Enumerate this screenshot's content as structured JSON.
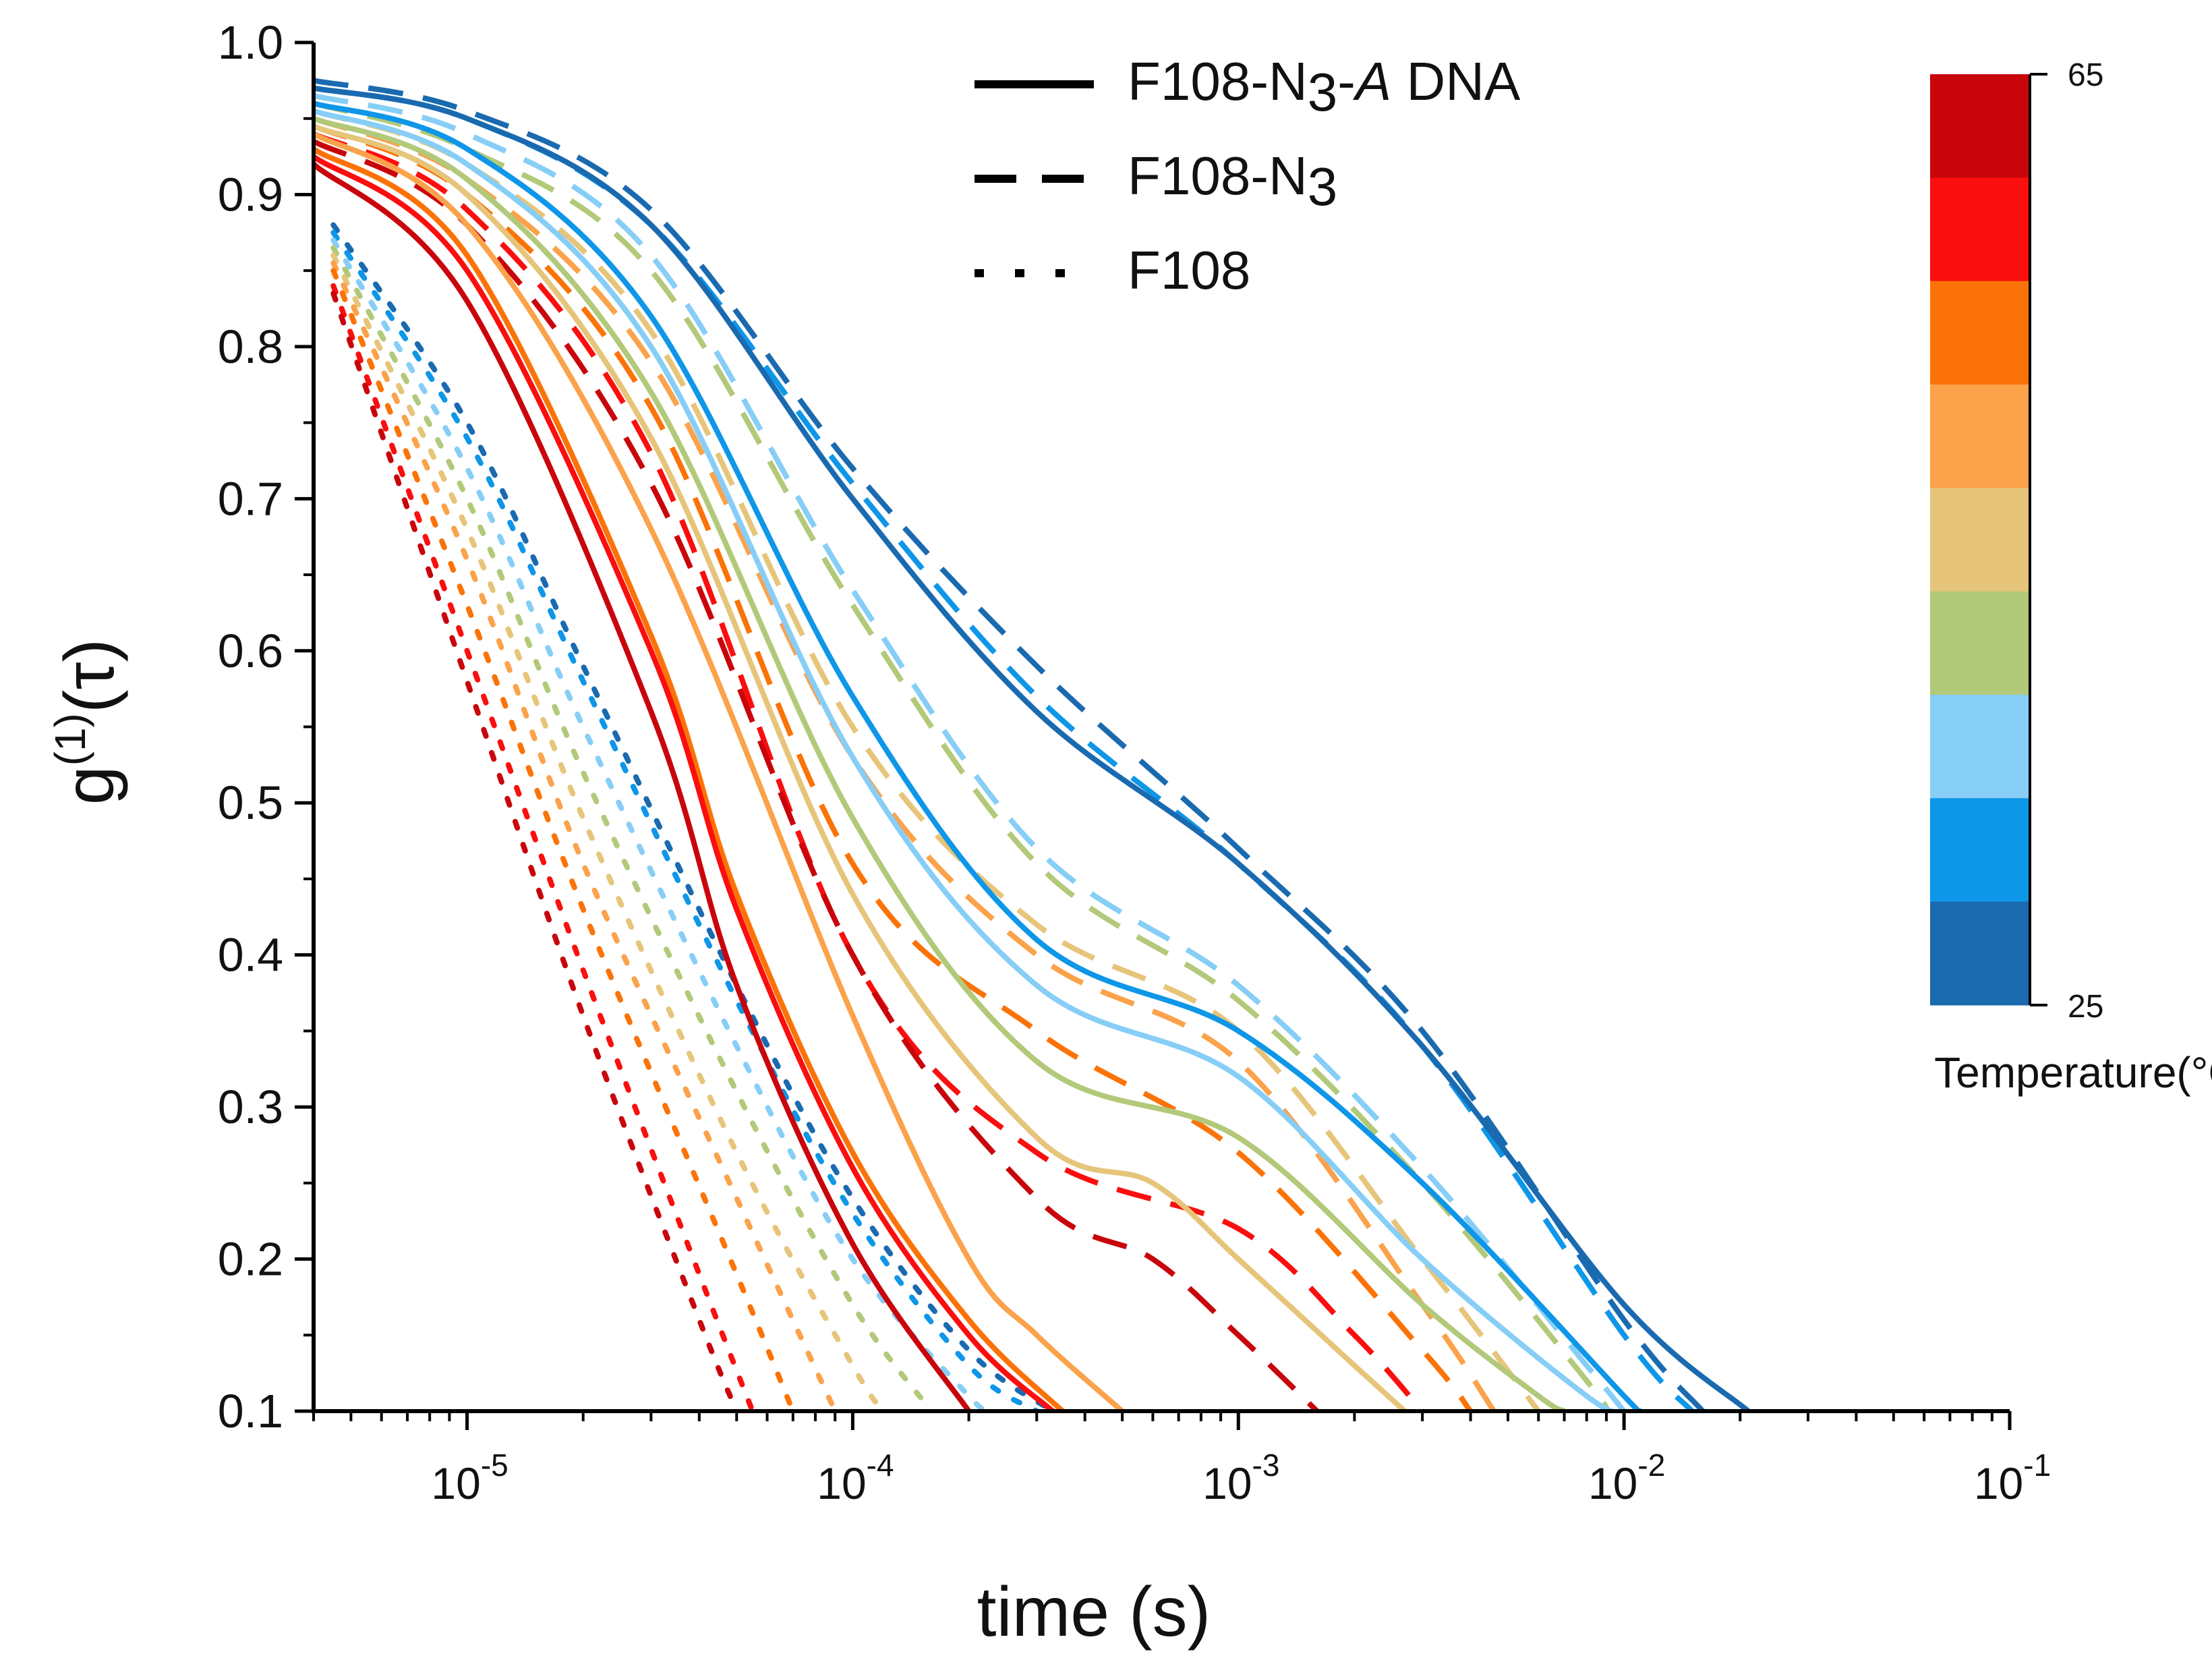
{
  "chart_data": {
    "type": "line",
    "title": "",
    "xlabel": "time (s)",
    "ylabel": {
      "base": "g",
      "superscript": "(1)",
      "suffix": "(τ)"
    },
    "xscale": "log",
    "xlim": [
      4e-06,
      0.1
    ],
    "ylim": [
      0.1,
      1.0
    ],
    "x_tick_labels": [
      {
        "base": "10",
        "exp": "-5"
      },
      {
        "base": "10",
        "exp": "-4"
      },
      {
        "base": "10",
        "exp": "-3"
      },
      {
        "base": "10",
        "exp": "-2"
      },
      {
        "base": "10",
        "exp": "-1"
      }
    ],
    "y_tick_labels": [
      "0.1",
      "0.2",
      "0.3",
      "0.4",
      "0.5",
      "0.6",
      "0.7",
      "0.8",
      "0.9",
      "1.0"
    ],
    "legend": {
      "position": "top-center",
      "entries": [
        {
          "style": "solid",
          "parts": [
            "F108-N",
            "3",
            "-",
            "A",
            " DNA"
          ]
        },
        {
          "style": "dashed",
          "parts": [
            "F108-N",
            "3"
          ]
        },
        {
          "style": "dotted",
          "parts": [
            "F108"
          ]
        }
      ]
    },
    "colorbar": {
      "label": "Temperature(°C)",
      "min_label": "25",
      "max_label": "65",
      "colors_low_to_high": [
        "#1a6ab0",
        "#0e96e8",
        "#87cef7",
        "#b2c97a",
        "#e6c57a",
        "#fba24b",
        "#fb7308",
        "#fb0e0e",
        "#c9050c"
      ]
    },
    "series_styles": [
      "solid",
      "dashed",
      "dotted"
    ],
    "temperatures_c": [
      25,
      30,
      35,
      40,
      45,
      50,
      55,
      60,
      65
    ],
    "series": [
      {
        "family": "solid",
        "temp": 25,
        "name": "F108-N3-A DNA 25°C",
        "x": [
          4e-06,
          1e-05,
          3e-05,
          0.0001,
          0.0003,
          0.001,
          0.003,
          0.01,
          0.021
        ],
        "y": [
          0.97,
          0.95,
          0.88,
          0.7,
          0.56,
          0.46,
          0.34,
          0.17,
          0.1
        ]
      },
      {
        "family": "solid",
        "temp": 30,
        "name": "F108-N3-A DNA 30°C",
        "x": [
          4e-06,
          1e-05,
          3e-05,
          0.0001,
          0.0003,
          0.001,
          0.003,
          0.01,
          0.011
        ],
        "y": [
          0.96,
          0.93,
          0.82,
          0.57,
          0.41,
          0.35,
          0.25,
          0.11,
          0.1
        ]
      },
      {
        "family": "solid",
        "temp": 35,
        "name": "F108-N3-A DNA 35°C",
        "x": [
          4e-06,
          1e-05,
          3e-05,
          0.0001,
          0.0003,
          0.001,
          0.003,
          0.008,
          0.01
        ],
        "y": [
          0.955,
          0.92,
          0.8,
          0.53,
          0.38,
          0.32,
          0.2,
          0.11,
          0.1
        ]
      },
      {
        "family": "solid",
        "temp": 40,
        "name": "F108-N3-A DNA 40°C",
        "x": [
          4e-06,
          1e-05,
          3e-05,
          0.0001,
          0.0003,
          0.001,
          0.003,
          0.006,
          0.007
        ],
        "y": [
          0.95,
          0.91,
          0.77,
          0.49,
          0.33,
          0.28,
          0.17,
          0.11,
          0.1
        ]
      },
      {
        "family": "solid",
        "temp": 45,
        "name": "F108-N3-A DNA 45°C",
        "x": [
          4e-06,
          1e-05,
          3e-05,
          0.0001,
          0.0003,
          0.0006,
          0.001,
          0.002,
          0.0027
        ],
        "y": [
          0.945,
          0.9,
          0.74,
          0.44,
          0.28,
          0.25,
          0.2,
          0.13,
          0.1
        ]
      },
      {
        "family": "solid",
        "temp": 50,
        "name": "F108-N3-A DNA 50°C",
        "x": [
          4e-06,
          1e-05,
          3e-05,
          0.0001,
          0.0002,
          0.0003,
          0.0005
        ],
        "y": [
          0.94,
          0.88,
          0.68,
          0.36,
          0.2,
          0.15,
          0.1
        ]
      },
      {
        "family": "solid",
        "temp": 55,
        "name": "F108-N3-A DNA 55°C",
        "x": [
          4e-06,
          1e-05,
          3e-05,
          5e-05,
          0.0001,
          0.0002,
          0.00035
        ],
        "y": [
          0.93,
          0.86,
          0.61,
          0.44,
          0.27,
          0.16,
          0.1
        ]
      },
      {
        "family": "solid",
        "temp": 60,
        "name": "F108-N3-A DNA 60°C",
        "x": [
          4e-06,
          1e-05,
          3e-05,
          5e-05,
          0.0001,
          0.0002,
          0.00033
        ],
        "y": [
          0.925,
          0.85,
          0.6,
          0.43,
          0.26,
          0.15,
          0.1
        ]
      },
      {
        "family": "solid",
        "temp": 65,
        "name": "F108-N3-A DNA 65°C",
        "x": [
          4e-06,
          1e-05,
          3e-05,
          5e-05,
          0.0001,
          0.0002
        ],
        "y": [
          0.92,
          0.83,
          0.56,
          0.38,
          0.21,
          0.1
        ]
      },
      {
        "family": "dashed",
        "temp": 25,
        "name": "F108-N3 25°C",
        "x": [
          4e-06,
          1e-05,
          3e-05,
          0.0001,
          0.0003,
          0.001,
          0.003,
          0.01,
          0.016
        ],
        "y": [
          0.975,
          0.955,
          0.89,
          0.72,
          0.59,
          0.47,
          0.35,
          0.16,
          0.1
        ]
      },
      {
        "family": "dashed",
        "temp": 30,
        "name": "F108-N3 30°C",
        "x": [
          4e-06,
          1e-05,
          3e-05,
          0.0001,
          0.0003,
          0.001,
          0.003,
          0.01,
          0.015
        ],
        "y": [
          0.97,
          0.95,
          0.88,
          0.71,
          0.57,
          0.46,
          0.34,
          0.15,
          0.1
        ]
      },
      {
        "family": "dashed",
        "temp": 35,
        "name": "F108-N3 35°C",
        "x": [
          4e-06,
          1e-05,
          3e-05,
          0.0001,
          0.0003,
          0.001,
          0.003,
          0.008,
          0.01
        ],
        "y": [
          0.965,
          0.94,
          0.86,
          0.64,
          0.47,
          0.38,
          0.26,
          0.13,
          0.1
        ]
      },
      {
        "family": "dashed",
        "temp": 40,
        "name": "F108-N3 40°C",
        "x": [
          4e-06,
          1e-05,
          3e-05,
          0.0001,
          0.0003,
          0.001,
          0.003,
          0.008,
          0.009
        ],
        "y": [
          0.96,
          0.93,
          0.85,
          0.63,
          0.46,
          0.37,
          0.25,
          0.12,
          0.1
        ]
      },
      {
        "family": "dashed",
        "temp": 45,
        "name": "F108-N3 45°C",
        "x": [
          4e-06,
          1e-05,
          3e-05,
          0.0001,
          0.0003,
          0.001,
          0.003,
          0.006
        ],
        "y": [
          0.955,
          0.92,
          0.81,
          0.55,
          0.42,
          0.35,
          0.2,
          0.1
        ]
      },
      {
        "family": "dashed",
        "temp": 50,
        "name": "F108-N3 50°C",
        "x": [
          4e-06,
          1e-05,
          3e-05,
          0.0001,
          0.0003,
          0.001,
          0.003,
          0.0046
        ],
        "y": [
          0.95,
          0.91,
          0.79,
          0.53,
          0.4,
          0.33,
          0.17,
          0.1
        ]
      },
      {
        "family": "dashed",
        "temp": 55,
        "name": "F108-N3 55°C",
        "x": [
          4e-06,
          1e-05,
          3e-05,
          0.0001,
          0.0003,
          0.001,
          0.003,
          0.004
        ],
        "y": [
          0.945,
          0.9,
          0.76,
          0.46,
          0.35,
          0.27,
          0.14,
          0.1
        ]
      },
      {
        "family": "dashed",
        "temp": 60,
        "name": "F108-N3 60°C",
        "x": [
          4e-06,
          1e-05,
          3e-05,
          0.0001,
          0.0003,
          0.001,
          0.002,
          0.003
        ],
        "y": [
          0.94,
          0.89,
          0.73,
          0.4,
          0.27,
          0.22,
          0.15,
          0.1
        ]
      },
      {
        "family": "dashed",
        "temp": 65,
        "name": "F108-N3 65°C",
        "x": [
          4e-06,
          1e-05,
          3e-05,
          0.0001,
          0.0003,
          0.0006,
          0.001,
          0.0016
        ],
        "y": [
          0.935,
          0.88,
          0.71,
          0.4,
          0.24,
          0.2,
          0.15,
          0.1
        ]
      },
      {
        "family": "dotted",
        "temp": 25,
        "name": "F108 25°C",
        "x": [
          4.5e-06,
          1e-05,
          2e-05,
          5e-05,
          0.0001,
          0.0002,
          0.00033
        ],
        "y": [
          0.88,
          0.75,
          0.59,
          0.38,
          0.24,
          0.14,
          0.1
        ]
      },
      {
        "family": "dotted",
        "temp": 30,
        "name": "F108 30°C",
        "x": [
          4.5e-06,
          1e-05,
          2e-05,
          5e-05,
          0.0001,
          0.0002,
          0.0003
        ],
        "y": [
          0.875,
          0.74,
          0.58,
          0.37,
          0.23,
          0.13,
          0.1
        ]
      },
      {
        "family": "dotted",
        "temp": 35,
        "name": "F108 35°C",
        "x": [
          4.5e-06,
          1e-05,
          2e-05,
          5e-05,
          0.0001,
          0.0002,
          0.00023
        ],
        "y": [
          0.87,
          0.72,
          0.55,
          0.34,
          0.2,
          0.11,
          0.1
        ]
      },
      {
        "family": "dotted",
        "temp": 40,
        "name": "F108 40°C",
        "x": [
          4.5e-06,
          1e-05,
          2e-05,
          5e-05,
          0.0001,
          0.00016
        ],
        "y": [
          0.865,
          0.7,
          0.52,
          0.31,
          0.17,
          0.1
        ]
      },
      {
        "family": "dotted",
        "temp": 45,
        "name": "F108 45°C",
        "x": [
          4.5e-06,
          1e-05,
          2e-05,
          5e-05,
          0.0001,
          0.00012
        ],
        "y": [
          0.86,
          0.68,
          0.49,
          0.27,
          0.13,
          0.1
        ]
      },
      {
        "family": "dotted",
        "temp": 50,
        "name": "F108 50°C",
        "x": [
          4.5e-06,
          1e-05,
          2e-05,
          5e-05,
          9e-05
        ],
        "y": [
          0.855,
          0.66,
          0.46,
          0.24,
          0.1
        ]
      },
      {
        "family": "dotted",
        "temp": 55,
        "name": "F108 55°C",
        "x": [
          4.5e-06,
          1e-05,
          2e-05,
          5e-05,
          7e-05
        ],
        "y": [
          0.85,
          0.63,
          0.43,
          0.19,
          0.1
        ]
      },
      {
        "family": "dotted",
        "temp": 60,
        "name": "F108 60°C",
        "x": [
          4.5e-06,
          1e-05,
          2e-05,
          4e-05,
          5.5e-05
        ],
        "y": [
          0.84,
          0.6,
          0.39,
          0.19,
          0.1
        ]
      },
      {
        "family": "dotted",
        "temp": 65,
        "name": "F108 65°C",
        "x": [
          4.5e-06,
          1e-05,
          2e-05,
          4e-05,
          5e-05
        ],
        "y": [
          0.835,
          0.58,
          0.36,
          0.16,
          0.1
        ]
      }
    ]
  }
}
